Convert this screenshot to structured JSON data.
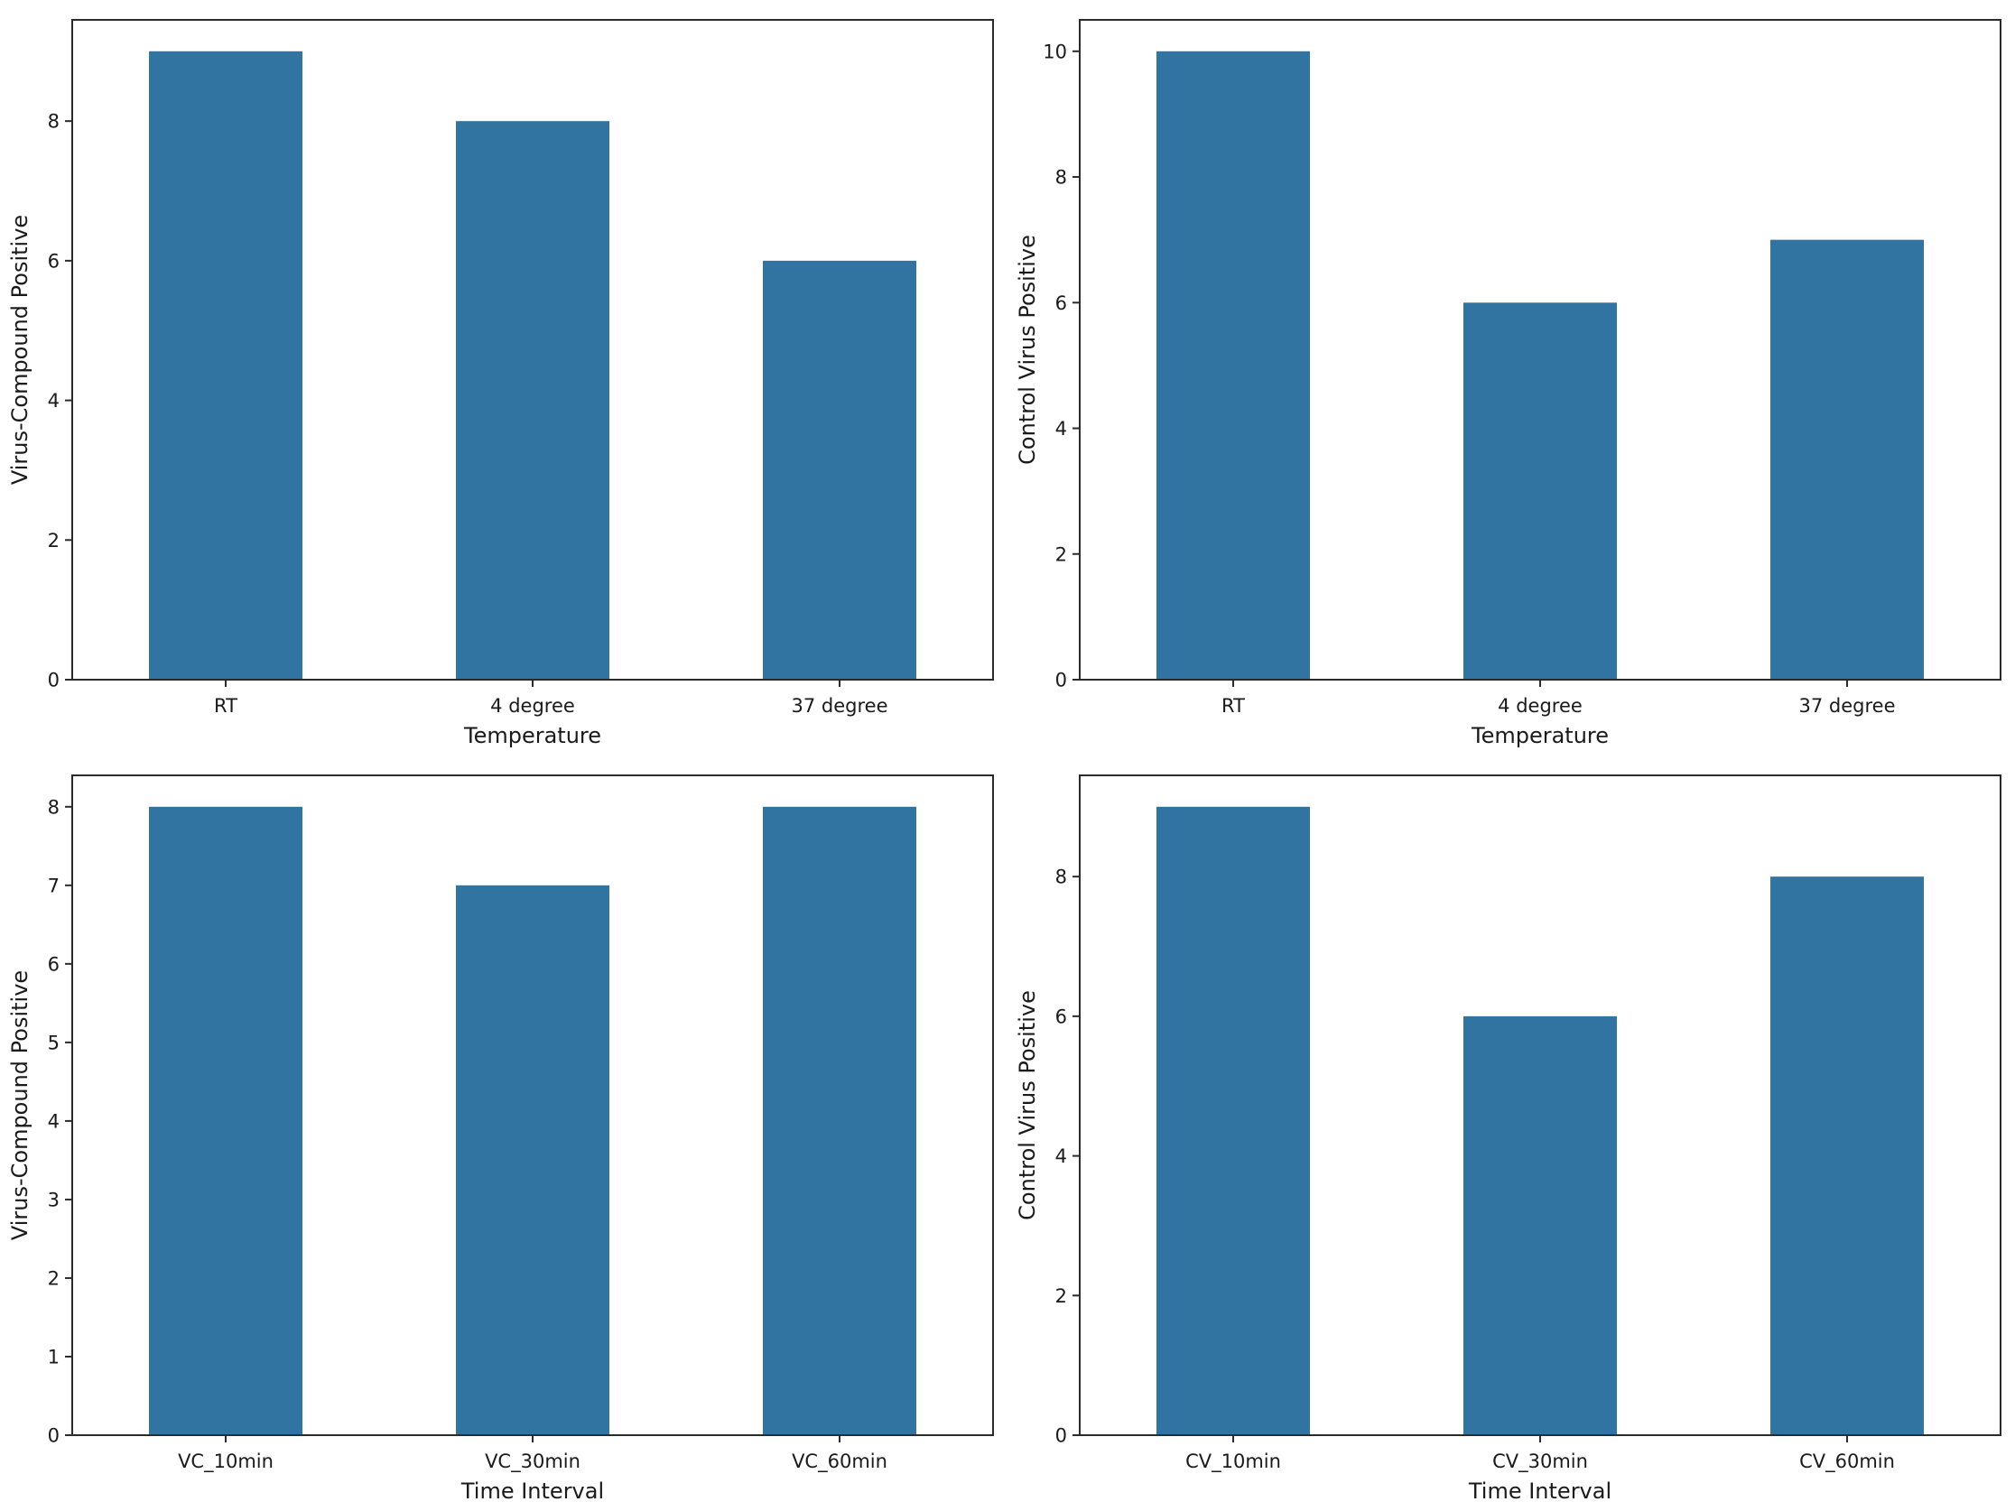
{
  "figure": {
    "background": "#ffffff",
    "bar_color": "#3274a1",
    "spine_color": "#2b2b2b",
    "tick_color": "#2b2b2b",
    "text_color": "#1a1a1a",
    "grid": false
  },
  "chart_data": [
    {
      "id": "virus-compound-by-temperature",
      "position": "top-left",
      "type": "bar",
      "title": "",
      "xlabel": "Temperature",
      "ylabel": "Virus-Compound Positive",
      "categories": [
        "RT",
        "4 degree",
        "37 degree"
      ],
      "values": [
        9,
        8,
        6
      ],
      "yticks": [
        0,
        2,
        4,
        6,
        8
      ],
      "ylim": [
        0,
        9.45
      ],
      "bar_rel_width": 0.5,
      "legend_position": "none"
    },
    {
      "id": "control-virus-by-temperature",
      "position": "top-right",
      "type": "bar",
      "title": "",
      "xlabel": "Temperature",
      "ylabel": "Control Virus Positive",
      "categories": [
        "RT",
        "4 degree",
        "37 degree"
      ],
      "values": [
        10,
        6,
        7
      ],
      "yticks": [
        0,
        2,
        4,
        6,
        8,
        10
      ],
      "ylim": [
        0,
        10.5
      ],
      "bar_rel_width": 0.5,
      "legend_position": "none"
    },
    {
      "id": "virus-compound-by-time-interval",
      "position": "bottom-left",
      "type": "bar",
      "title": "",
      "xlabel": "Time Interval",
      "ylabel": "Virus-Compound Positive",
      "categories": [
        "VC_10min",
        "VC_30min",
        "VC_60min"
      ],
      "values": [
        8,
        7,
        8
      ],
      "yticks": [
        0,
        1,
        2,
        3,
        4,
        5,
        6,
        7,
        8
      ],
      "ylim": [
        0,
        8.4
      ],
      "bar_rel_width": 0.5,
      "legend_position": "none"
    },
    {
      "id": "control-virus-by-time-interval",
      "position": "bottom-right",
      "type": "bar",
      "title": "",
      "xlabel": "Time Interval",
      "ylabel": "Control Virus Positive",
      "categories": [
        "CV_10min",
        "CV_30min",
        "CV_60min"
      ],
      "values": [
        9,
        6,
        8
      ],
      "yticks": [
        0,
        2,
        4,
        6,
        8
      ],
      "ylim": [
        0,
        9.45
      ],
      "bar_rel_width": 0.5,
      "legend_position": "none"
    }
  ]
}
